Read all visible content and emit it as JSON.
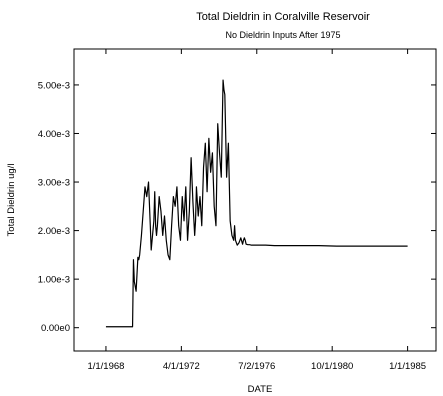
{
  "chart_data": {
    "type": "line",
    "title": "Total Dieldrin in Coralville Reservoir",
    "subtitle": "No Dieldrin Inputs After 1975",
    "xlabel": "DATE",
    "ylabel": "Total Dieldrin ug/l",
    "x_ticks": [
      "1/1/1968",
      "4/1/1972",
      "7/2/1976",
      "10/1/1980",
      "1/1/1985"
    ],
    "x_tick_values": [
      1968.0,
      1972.25,
      1976.5,
      1980.75,
      1985.0
    ],
    "xlim": [
      1966.2,
      1986.6
    ],
    "y_ticks": [
      "0.00e0",
      "1.00e-3",
      "2.00e-3",
      "3.00e-3",
      "4.00e-3",
      "5.00e-3"
    ],
    "y_tick_values": [
      0,
      0.001,
      0.002,
      0.003,
      0.004,
      0.005
    ],
    "ylim": [
      -0.00048,
      0.00574
    ],
    "grid": false,
    "legend": "none",
    "line_color": "#000000",
    "series": [
      {
        "x": [
          1968.0,
          1969.3,
          1969.5,
          1969.55,
          1969.6,
          1969.7,
          1969.8,
          1969.85,
          1969.9,
          1970.0,
          1970.1,
          1970.2,
          1970.3,
          1970.4,
          1970.5,
          1970.55,
          1970.6,
          1970.7,
          1970.75,
          1970.8,
          1970.85,
          1970.9,
          1971.0,
          1971.1,
          1971.2,
          1971.3,
          1971.4,
          1971.5,
          1971.6,
          1971.7,
          1971.8,
          1971.9,
          1972.0,
          1972.1,
          1972.2,
          1972.3,
          1972.4,
          1972.5,
          1972.6,
          1972.7,
          1972.8,
          1972.9,
          1973.0,
          1973.05,
          1973.1,
          1973.2,
          1973.3,
          1973.4,
          1973.5,
          1973.6,
          1973.7,
          1973.8,
          1973.9,
          1974.0,
          1974.1,
          1974.2,
          1974.3,
          1974.4,
          1974.5,
          1974.6,
          1974.65,
          1974.7,
          1974.8,
          1974.9,
          1975.0,
          1975.1,
          1975.2,
          1975.25,
          1975.3,
          1975.4,
          1975.5,
          1975.55,
          1975.6,
          1975.7,
          1975.75,
          1975.8,
          1975.85,
          1975.9,
          1976.0,
          1976.1,
          1976.2,
          1976.3,
          1976.4,
          1976.5,
          1976.6,
          1976.7,
          1976.8,
          1977.0,
          1977.5,
          1978.0,
          1979.0,
          1980.0,
          1981.0,
          1982.0,
          1983.0,
          1984.0,
          1985.0
        ],
        "y": [
          2e-05,
          2e-05,
          2e-05,
          0.0014,
          0.00095,
          0.00075,
          0.00145,
          0.0014,
          0.0015,
          0.0019,
          0.0024,
          0.0029,
          0.0027,
          0.003,
          0.0021,
          0.0016,
          0.0018,
          0.0022,
          0.0028,
          0.0021,
          0.0019,
          0.0021,
          0.0027,
          0.0024,
          0.0019,
          0.0023,
          0.0018,
          0.0015,
          0.0014,
          0.0021,
          0.0027,
          0.0025,
          0.0029,
          0.0021,
          0.0018,
          0.0027,
          0.0022,
          0.0029,
          0.0018,
          0.0024,
          0.0035,
          0.0026,
          0.0019,
          0.0022,
          0.0029,
          0.0023,
          0.0027,
          0.0021,
          0.0033,
          0.0038,
          0.0028,
          0.0039,
          0.0032,
          0.0036,
          0.0025,
          0.0021,
          0.0042,
          0.0036,
          0.0031,
          0.0051,
          0.0049,
          0.0048,
          0.0031,
          0.0038,
          0.0022,
          0.0019,
          0.0018,
          0.0021,
          0.0018,
          0.0017,
          0.00175,
          0.0018,
          0.00185,
          0.00172,
          0.0018,
          0.00185,
          0.0018,
          0.00172,
          0.00171,
          0.00171,
          0.0017,
          0.0017,
          0.0017,
          0.0017,
          0.0017,
          0.0017,
          0.0017,
          0.0017,
          0.00169,
          0.00169,
          0.00169,
          0.00169,
          0.00168,
          0.00168,
          0.00168,
          0.00168,
          0.00168
        ]
      }
    ]
  }
}
